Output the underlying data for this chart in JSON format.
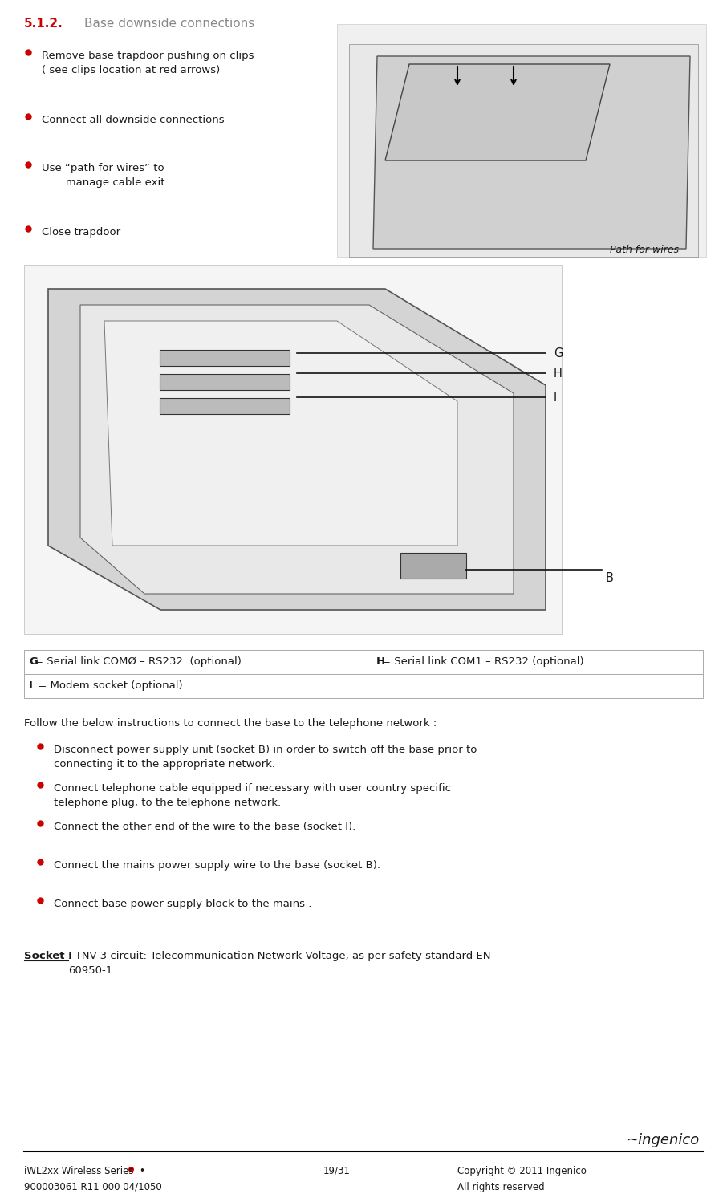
{
  "title_number": "5.1.2.",
  "title_text": "Base downside connections",
  "title_number_color": "#cc0000",
  "title_text_color": "#888888",
  "bullet_color": "#cc0000",
  "bullet_points_left": [
    "Remove base trapdoor pushing on clips\n( see clips location at red arrows)",
    "Connect all downside connections",
    "Use “path for wires” to\n       manage cable exit",
    "Close trapdoor"
  ],
  "path_for_wires_label": "Path for wires",
  "labels_GHI": [
    "G",
    "H",
    "I"
  ],
  "label_B": "B",
  "table_data": [
    [
      "G= Serial link COMØ – RS232  (optional)",
      "H= Serial link COM1 – RS232 (optional)"
    ],
    [
      "I = Modem socket (optional)",
      ""
    ]
  ],
  "follow_text": "Follow the below instructions to connect the base to the telephone network :",
  "instructions": [
    "Disconnect power supply unit (socket B) in order to switch off the base prior to\nconnecting it to the appropriate network.",
    "Connect telephone cable equipped if necessary with user country specific\ntelephone plug, to the telephone network.",
    "Connect the other end of the wire to the base (socket I).",
    "Connect the mains power supply wire to the base (socket B).",
    "Connect base power supply block to the mains ."
  ],
  "socket_label": "Socket I ",
  "socket_text": ": TNV-3 circuit: Telecommunication Network Voltage, as per safety standard EN\n60950-1.",
  "footer_left1": "iWL2xx Wireless Series  •",
  "footer_left2": "900003061 R11 000 04/1050",
  "footer_center": "19/31",
  "footer_right1": "Copyright © 2011 Ingenico",
  "footer_right2": "All rights reserved",
  "bg_color": "#ffffff",
  "text_color": "#1a1a1a",
  "table_border_color": "#aaaaaa",
  "footer_line_color": "#000000",
  "font_size_title": 11,
  "font_size_body": 9.5,
  "font_size_footer": 8.5
}
